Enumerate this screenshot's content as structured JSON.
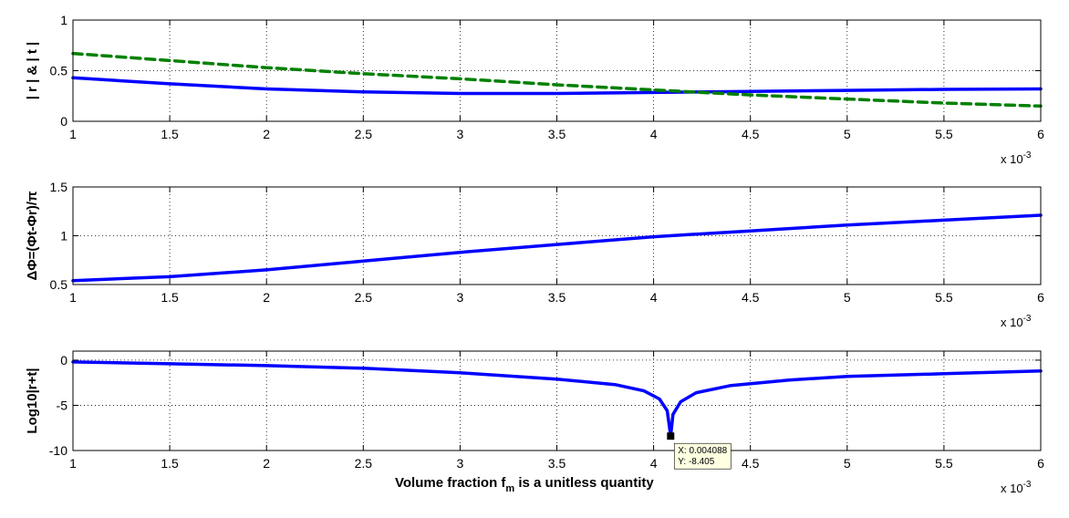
{
  "figure": {
    "xlabel_main": "Volume fraction f",
    "xlabel_sub": "m",
    "xlabel_rest": " is a unitless quantity",
    "exponent_base": "x 10",
    "exponent_power": "-3"
  },
  "chart_data": [
    {
      "type": "line",
      "ylabel": "| r | & | t |",
      "xlim": [
        1,
        6
      ],
      "ylim": [
        0,
        1
      ],
      "xticks": [
        "1",
        "1.5",
        "2",
        "2.5",
        "3",
        "3.5",
        "4",
        "4.5",
        "5",
        "5.5",
        "6"
      ],
      "yticks": [
        "0",
        "0.5",
        "1"
      ],
      "grid": true,
      "x": [
        1,
        1.5,
        2,
        2.5,
        3,
        3.5,
        4,
        4.5,
        5,
        5.5,
        6
      ],
      "series": [
        {
          "values": [
            0.43,
            0.37,
            0.32,
            0.29,
            0.275,
            0.275,
            0.285,
            0.295,
            0.305,
            0.315,
            0.32
          ],
          "color": "#0000ff",
          "style": "solid"
        },
        {
          "values": [
            0.67,
            0.6,
            0.53,
            0.47,
            0.42,
            0.36,
            0.31,
            0.26,
            0.22,
            0.18,
            0.15
          ],
          "color": "#008000",
          "style": "dashed"
        }
      ]
    },
    {
      "type": "line",
      "ylabel": "ΔΦ=(Φt-Φr)/π",
      "xlim": [
        1,
        6
      ],
      "ylim": [
        0.5,
        1.5
      ],
      "xticks": [
        "1",
        "1.5",
        "2",
        "2.5",
        "3",
        "3.5",
        "4",
        "4.5",
        "5",
        "5.5",
        "6"
      ],
      "yticks": [
        "0.5",
        "1",
        "1.5"
      ],
      "grid": true,
      "x": [
        1,
        1.5,
        2,
        2.5,
        3,
        3.5,
        4,
        4.5,
        5,
        5.5,
        6
      ],
      "series": [
        {
          "values": [
            0.54,
            0.58,
            0.65,
            0.74,
            0.83,
            0.91,
            0.99,
            1.05,
            1.11,
            1.16,
            1.21
          ],
          "color": "#0000ff",
          "style": "solid"
        }
      ]
    },
    {
      "type": "line",
      "ylabel": "Log10|r+t|",
      "xlim": [
        1,
        6
      ],
      "ylim": [
        -10,
        1
      ],
      "xticks": [
        "1",
        "1.5",
        "2",
        "2.5",
        "3",
        "3.5",
        "4",
        "4.5",
        "5",
        "5.5",
        "6"
      ],
      "yticks": [
        "-10",
        "-5",
        "0"
      ],
      "grid": true,
      "x": [
        1,
        1.5,
        2,
        2.5,
        3,
        3.5,
        3.8,
        3.95,
        4.03,
        4.07,
        4.088,
        4.1,
        4.14,
        4.22,
        4.4,
        4.7,
        5,
        5.5,
        6
      ],
      "series": [
        {
          "values": [
            -0.2,
            -0.4,
            -0.6,
            -0.9,
            -1.4,
            -2.1,
            -2.7,
            -3.4,
            -4.3,
            -5.6,
            -8.4,
            -6.0,
            -4.6,
            -3.6,
            -2.8,
            -2.2,
            -1.8,
            -1.5,
            -1.2
          ],
          "color": "#0000ff",
          "style": "solid"
        }
      ],
      "datatip": {
        "x_text": "X: 0.004088",
        "y_text": "Y: -8.405",
        "x": 4.088,
        "y": -8.405
      }
    }
  ]
}
